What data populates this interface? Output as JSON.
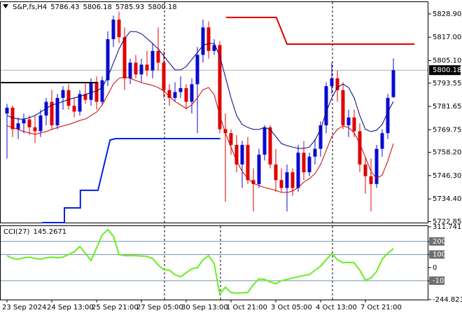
{
  "chart_data": [
    {
      "type": "candlestick",
      "title": "S&P,fs,H4",
      "categories": [
        "23 Sep 2024",
        null,
        null,
        null,
        null,
        null,
        null,
        null,
        "24 Sep 13:00",
        null,
        null,
        null,
        null,
        null,
        null,
        null,
        "25 Sep 21:00",
        null,
        null,
        null,
        null,
        null,
        null,
        null,
        "27 Sep 05:00",
        null,
        null,
        null,
        null,
        null,
        null,
        null,
        "30 Sep 13:00",
        null,
        null,
        null,
        null,
        null,
        null,
        null,
        "1 Oct 21:00",
        null,
        null,
        null,
        null,
        null,
        null,
        null,
        "3 Oct 05:00",
        null,
        null,
        null,
        null,
        null,
        null,
        null,
        "4 Oct 13:00",
        null,
        null,
        null,
        null,
        null,
        null,
        null,
        "7 Oct 21:00",
        null,
        null,
        null,
        null,
        null
      ],
      "open": [
        5778,
        5781,
        5770,
        5773,
        5775,
        5771,
        5769,
        5777,
        5784,
        5772,
        5786,
        5790,
        5782,
        5779,
        5788,
        5785,
        5794,
        5784,
        5795,
        5816,
        5826,
        5817,
        5796,
        5804,
        5798,
        5803,
        5800,
        5810,
        5804,
        5790,
        5786,
        5789,
        5791,
        5784,
        5793,
        5808,
        5822,
        5810,
        5813,
        5770,
        5768,
        5762,
        5752,
        5762,
        5744,
        5742,
        5757,
        5771,
        5752,
        5744,
        5740,
        5748,
        5740,
        5758,
        5748,
        5756,
        5760,
        5772,
        5792,
        5796,
        5790,
        5772,
        5776,
        5769,
        5752,
        5746,
        5742,
        5760,
        5768,
        5786.43
      ],
      "high": [
        5783,
        5782,
        5776,
        5778,
        5777,
        5777,
        5780,
        5786,
        5790,
        5788,
        5792,
        5793,
        5786,
        5790,
        5794,
        5796,
        5797,
        5797,
        5820,
        5828,
        5830,
        5822,
        5806,
        5808,
        5806,
        5810,
        5814,
        5822,
        5810,
        5793,
        5794,
        5797,
        5793,
        5796,
        5812,
        5826,
        5825,
        5816,
        5815,
        5778,
        5770,
        5767,
        5764,
        5766,
        5750,
        5760,
        5772,
        5772,
        5760,
        5750,
        5752,
        5750,
        5762,
        5764,
        5758,
        5765,
        5774,
        5794,
        5804,
        5800,
        5794,
        5780,
        5780,
        5773,
        5756,
        5755,
        5762,
        5770,
        5788,
        5806.18
      ],
      "low": [
        5755,
        5766,
        5765,
        5768,
        5767,
        5763,
        5766,
        5772,
        5770,
        5770,
        5780,
        5780,
        5776,
        5777,
        5783,
        5782,
        5780,
        5782,
        5792,
        5812,
        5814,
        5790,
        5793,
        5796,
        5794,
        5797,
        5796,
        5800,
        5786,
        5782,
        5784,
        5786,
        5780,
        5778,
        5768,
        5804,
        5806,
        5808,
        5768,
        5733,
        5757,
        5748,
        5740,
        5742,
        5728,
        5740,
        5754,
        5750,
        5738,
        5738,
        5728,
        5736,
        5738,
        5744,
        5746,
        5752,
        5756,
        5768,
        5788,
        5784,
        5770,
        5766,
        5766,
        5748,
        5737,
        5728,
        5740,
        5756,
        5765,
        5785.93
      ],
      "close": [
        5781,
        5770,
        5773,
        5775,
        5771,
        5769,
        5777,
        5784,
        5772,
        5786,
        5790,
        5782,
        5779,
        5788,
        5785,
        5794,
        5784,
        5795,
        5816,
        5826,
        5817,
        5796,
        5804,
        5798,
        5803,
        5800,
        5810,
        5804,
        5790,
        5786,
        5789,
        5791,
        5784,
        5793,
        5808,
        5822,
        5810,
        5813,
        5770,
        5768,
        5762,
        5752,
        5762,
        5744,
        5742,
        5757,
        5771,
        5752,
        5744,
        5740,
        5748,
        5740,
        5758,
        5748,
        5756,
        5760,
        5772,
        5792,
        5796,
        5790,
        5772,
        5776,
        5769,
        5752,
        5746,
        5742,
        5760,
        5768,
        5786,
        5800.18
      ],
      "up_color": "#0a0ad0",
      "down_color": "#e00000",
      "series": [
        {
          "color": "#000080",
          "values": [
            5777.0,
            5775.9,
            5775.2,
            5775.2,
            5775.9,
            5777.0,
            5778.8,
            5780.6,
            5782.4,
            5783.1,
            5784.2,
            5785.2,
            5786.0,
            5786.7,
            5787.7,
            5788.8,
            5789.5,
            5791.3,
            5796.7,
            5803.8,
            5811.0,
            5816.3,
            5819.9,
            5819.9,
            5818.8,
            5816.3,
            5813.8,
            5811.0,
            5807.4,
            5803.8,
            5800.3,
            5800.3,
            5802.0,
            5805.6,
            5809.2,
            5812.8,
            5813.8,
            5813.8,
            5807.4,
            5796.7,
            5786.0,
            5777.0,
            5772.4,
            5770.9,
            5769.9,
            5769.9,
            5770.9,
            5769.9,
            5766.3,
            5762.7,
            5761.6,
            5760.9,
            5760.2,
            5760.2,
            5760.9,
            5764.5,
            5769.9,
            5778.8,
            5786.0,
            5791.3,
            5793.1,
            5791.3,
            5786.0,
            5777.0,
            5769.9,
            5768.8,
            5769.5,
            5772.4,
            5778.8,
            5784.2
          ]
        },
        {
          "color": "#cc0000",
          "values": [
            5771.7,
            5770.9,
            5769.9,
            5768.8,
            5768.1,
            5767.4,
            5768.1,
            5768.8,
            5769.9,
            5770.9,
            5771.7,
            5772.4,
            5773.4,
            5774.5,
            5775.2,
            5777.0,
            5778.8,
            5782.4,
            5787.7,
            5793.1,
            5796.0,
            5796.7,
            5796.0,
            5794.9,
            5793.8,
            5793.1,
            5792.4,
            5791.3,
            5789.5,
            5786.7,
            5784.2,
            5782.4,
            5780.6,
            5782.4,
            5786.0,
            5790.2,
            5791.3,
            5787.7,
            5777.0,
            5768.1,
            5760.9,
            5753.8,
            5748.4,
            5744.8,
            5742.3,
            5741.3,
            5740.2,
            5739.5,
            5738.8,
            5737.7,
            5737.7,
            5738.4,
            5740.2,
            5743.0,
            5744.8,
            5747.3,
            5752.0,
            5759.1,
            5766.3,
            5769.9,
            5771.7,
            5770.9,
            5768.1,
            5762.7,
            5755.6,
            5748.4,
            5744.8,
            5746.6,
            5753.8,
            5762.7
          ]
        }
      ],
      "overlays": [
        {
          "color": "#000000",
          "width": 2,
          "x": [
            -1.25,
            16.25
          ],
          "values": [
            5793.8,
            5793.8
          ]
        },
        {
          "color": "#0022dd",
          "width": 2,
          "x": [
            6.25,
            10.25,
            10.25,
            13.1,
            13.1,
            16.25,
            18.4,
            19.4,
            38.1
          ],
          "values": [
            5722.3,
            5722.3,
            5729.8,
            5729.8,
            5738.8,
            5738.8,
            5764.5,
            5765.2,
            5765.2
          ]
        },
        {
          "color": "#e00000",
          "width": 2,
          "x": [
            39.1,
            48.1,
            50,
            72.75
          ],
          "values": [
            5827.1,
            5827.1,
            5813.5,
            5813.5
          ]
        }
      ],
      "ylim": [
        5722.3,
        5835.3
      ],
      "yticks": [
        {
          "value": 5828.9,
          "label": "5828.90"
        },
        {
          "value": 5817,
          "label": "5817.00"
        },
        {
          "value": 5805.1,
          "label": "5805.10"
        },
        5793.55,
        5781.65,
        5769.75,
        {
          "value": 5758.2,
          "label": "5758.20"
        },
        {
          "value": 5746.3,
          "label": "5746.30"
        },
        {
          "value": 5734.4,
          "label": "5734.40"
        },
        5722.85
      ]
    },
    {
      "type": "line",
      "title": "CCI(27)",
      "color": "#66ee22",
      "values": [
        91,
        70,
        64,
        75,
        80,
        70,
        64,
        75,
        80,
        75,
        80,
        100,
        120,
        161,
        110,
        54,
        150,
        250,
        290,
        240,
        100,
        91,
        91,
        91,
        88,
        85,
        70,
        20,
        -16,
        -20,
        -55,
        -70,
        -40,
        -10,
        0,
        60,
        91,
        30,
        -204,
        -150,
        -190,
        -195,
        -193,
        -190,
        -130,
        -86,
        -90,
        -110,
        -123,
        -100,
        -90,
        -80,
        -70,
        -60,
        -54,
        -20,
        11,
        60,
        107,
        60,
        37,
        40,
        37,
        -20,
        -96,
        -80,
        -30,
        64,
        110,
        145.2671
      ],
      "ylim": [
        -244.823,
        311.7415
      ],
      "yticks": [
        311.7415,
        200,
        100,
        0,
        -100,
        -244.823
      ],
      "levels": [
        200,
        100,
        -100
      ],
      "level_color": "#6f8fa8"
    }
  ]
}
